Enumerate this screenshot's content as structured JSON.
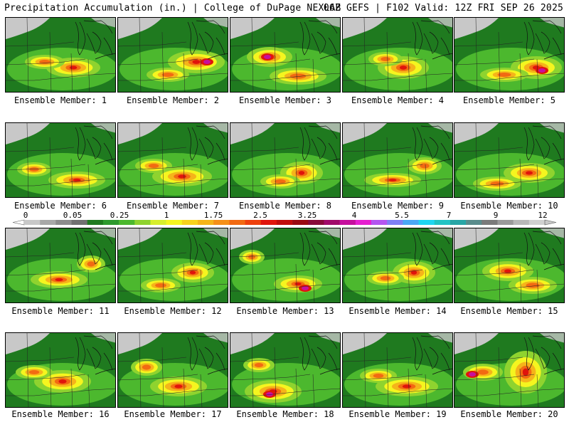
{
  "header": {
    "left_title": "Precipitation Accumulation (in.) | College of DuPage NEXLAB",
    "right_title": "06Z GEFS | F102 Valid: 12Z FRI SEP 26 2025"
  },
  "colorbar": {
    "labels": [
      "0",
      "0.05",
      "0.25",
      "1",
      "1.75",
      "2.5",
      "3.25",
      "4",
      "5.5",
      "7",
      "9",
      "12"
    ],
    "colors": [
      "#c8c8c8",
      "#a8a8a8",
      "#8c8c8c",
      "#707070",
      "#1f7a1f",
      "#2e9a2e",
      "#4cb82e",
      "#8fd32f",
      "#d7ee2c",
      "#f5f51f",
      "#f7d21c",
      "#f5b41a",
      "#f59017",
      "#f26a12",
      "#ee410d",
      "#e0140c",
      "#bf0b0b",
      "#9a0a12",
      "#880a3a",
      "#a10a6a",
      "#c60f9e",
      "#e61fd0",
      "#b455f0",
      "#7f7ff5",
      "#4aa8f5",
      "#1fd6f0",
      "#22c4c4",
      "#28a6a6",
      "#5a8c8c",
      "#7a7a7a",
      "#9a9a9a",
      "#b8b8b8",
      "#d0d0d0"
    ]
  },
  "palette": {
    "trace": "#c8c8c8",
    "light": "#1f7a1f",
    "moderate": "#4cb82e",
    "heavy1": "#8fd32f",
    "heavy2": "#f5f51f",
    "heavy3": "#f5b41a",
    "heavy4": "#f26a12",
    "heavy5": "#e0140c",
    "extreme": "#c60f9e"
  },
  "members": [
    {
      "label": "Ensemble Member: 1"
    },
    {
      "label": "Ensemble Member: 2"
    },
    {
      "label": "Ensemble Member: 3"
    },
    {
      "label": "Ensemble Member: 4"
    },
    {
      "label": "Ensemble Member: 5"
    },
    {
      "label": "Ensemble Member: 6"
    },
    {
      "label": "Ensemble Member: 7"
    },
    {
      "label": "Ensemble Member: 8"
    },
    {
      "label": "Ensemble Member: 9"
    },
    {
      "label": "Ensemble Member: 10"
    },
    {
      "label": "Ensemble Member: 11"
    },
    {
      "label": "Ensemble Member: 12"
    },
    {
      "label": "Ensemble Member: 13"
    },
    {
      "label": "Ensemble Member: 14"
    },
    {
      "label": "Ensemble Member: 15"
    },
    {
      "label": "Ensemble Member: 16"
    },
    {
      "label": "Ensemble Member: 17"
    },
    {
      "label": "Ensemble Member: 18"
    },
    {
      "label": "Ensemble Member: 19"
    },
    {
      "label": "Ensemble Member: 20"
    }
  ]
}
